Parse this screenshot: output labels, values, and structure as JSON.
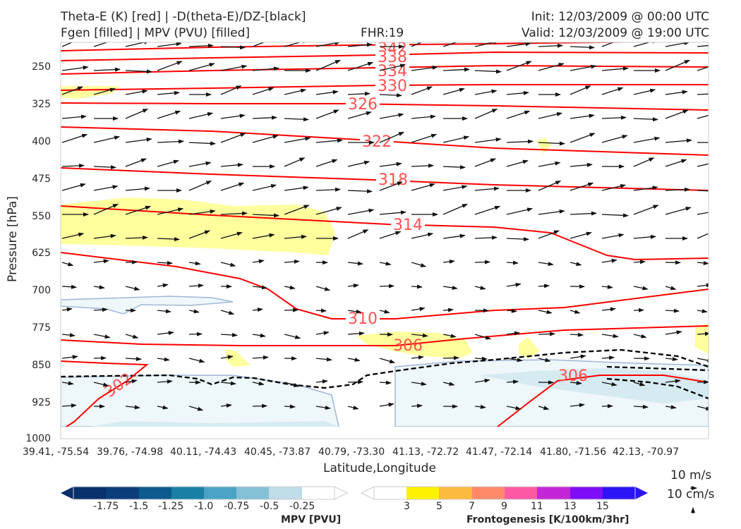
{
  "header": {
    "title_line1": "Theta-E (K) [red] | -D(theta-E)/DZ-[black]",
    "title_line2": "Fgen [filled] | MPV (PVU) [filled]",
    "fhr": "FHR:19",
    "init": "Init: 12/03/2009 @ 00:00 UTC",
    "valid": "Valid: 12/03/2009 @ 19:00 UTC"
  },
  "chart_data": {
    "type": "cross-section",
    "title": "Theta-E (K) [red] | -D(theta-E)/DZ-[black] | Fgen [filled] | MPV (PVU) [filled]",
    "xlabel": "Latitude,Longitude",
    "ylabel": "Pressure [hPa]",
    "y_axis_inverted": true,
    "yticks": [
      "250",
      "325",
      "400",
      "475",
      "550",
      "625",
      "700",
      "775",
      "850",
      "925",
      "1000"
    ],
    "xticks": [
      "39.41, -75.54",
      "39.76, -74.98",
      "40.11, -74.43",
      "40.45, -73.87",
      "40.79, -73.30",
      "41.13, -72.72",
      "41.47, -72.14",
      "41.80, -71.56",
      "42.13, -70.97"
    ],
    "theta_e_contour_labels": [
      "342",
      "338",
      "334",
      "330",
      "326",
      "322",
      "318",
      "314",
      "310",
      "306",
      "306",
      "302"
    ],
    "wind_reference": [
      "10 m/s",
      "10 cm/s"
    ],
    "colorbars": [
      {
        "title": "MPV [PVU]",
        "ticks": [
          "-1.75",
          "-1.5",
          "-1.25",
          "-1.0",
          "-0.75",
          "-0.5",
          "-0.25"
        ],
        "colors": [
          "#08306b",
          "#0b3d7a",
          "#0d5a8c",
          "#1a7fa5",
          "#4aa3c4",
          "#85c0d6",
          "#bedde7",
          "#ffffff"
        ]
      },
      {
        "title": "Frontogenesis [K/100km/3hr]",
        "ticks": [
          "3",
          "5",
          "7",
          "9",
          "11",
          "13",
          "15"
        ],
        "colors": [
          "#ffffff",
          "#fff200",
          "#fcbb3f",
          "#fc8a6a",
          "#fc59a3",
          "#c326d9",
          "#7e0ef5",
          "#2b14f5"
        ]
      }
    ]
  }
}
